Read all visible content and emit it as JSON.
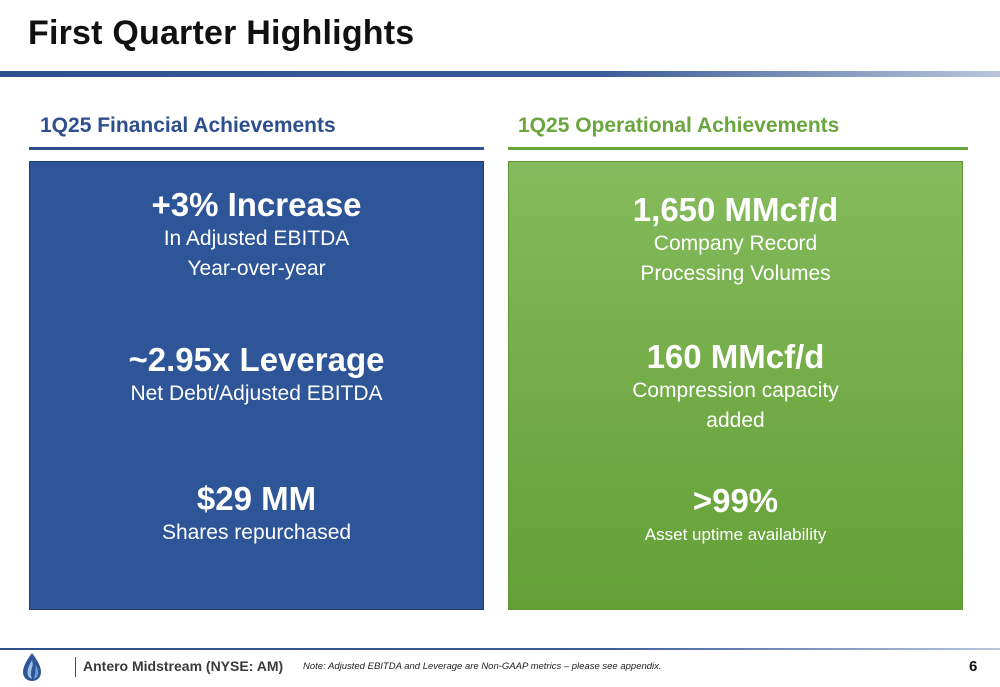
{
  "slide": {
    "title": "First Quarter Highlights"
  },
  "financial": {
    "heading": "1Q25 Financial Achievements",
    "items": [
      {
        "headline": "+3% Increase",
        "lines": [
          "In Adjusted EBITDA",
          "Year-over-year"
        ]
      },
      {
        "headline": "~2.95x Leverage",
        "lines": [
          "Net Debt/Adjusted EBITDA"
        ]
      },
      {
        "headline": "$29 MM",
        "lines": [
          "Shares repurchased"
        ]
      }
    ]
  },
  "operational": {
    "heading": "1Q25 Operational Achievements",
    "items": [
      {
        "headline": "1,650 MMcf/d",
        "lines": [
          "Company Record",
          "Processing Volumes"
        ]
      },
      {
        "headline": "160 MMcf/d",
        "lines": [
          "Compression capacity",
          "added"
        ]
      },
      {
        "headline": ">99%",
        "lines": [
          "Asset uptime availability"
        ]
      }
    ]
  },
  "footer": {
    "company": "Antero Midstream (NYSE: AM)",
    "note": "Note: Adjusted EBITDA and Leverage are Non-GAAP metrics – please see appendix.",
    "page_number": "6",
    "logo_icon": "flame-drop-icon"
  },
  "colors": {
    "brand_blue": "#2d5598",
    "heading_blue": "#2d4f8e",
    "brand_green": "#72ab46",
    "heading_green": "#6aa63e"
  }
}
